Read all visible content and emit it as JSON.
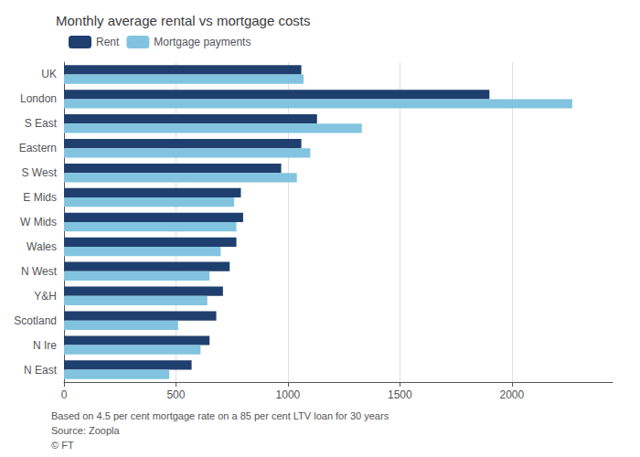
{
  "chart_data": {
    "type": "bar",
    "orientation": "horizontal",
    "title": "Monthly average rental vs mortgage costs",
    "annotations": [
      "Based on 4.5 per cent mortgage rate on a 85 per cent LTV loan for 30 years",
      "Source: Zoopla",
      "© FT"
    ],
    "categories": [
      "UK",
      "London",
      "S East",
      "Eastern",
      "S West",
      "E Mids",
      "W Mids",
      "Wales",
      "N West",
      "Y&H",
      "Scotland",
      "N Ire",
      "N East"
    ],
    "series": [
      {
        "name": "Rent",
        "color": "#1f3f6e",
        "values": [
          1060,
          1900,
          1130,
          1060,
          970,
          790,
          800,
          770,
          740,
          710,
          680,
          650,
          570
        ]
      },
      {
        "name": "Mortgage payments",
        "color": "#82c4e0",
        "values": [
          1070,
          2270,
          1330,
          1100,
          1040,
          760,
          770,
          700,
          650,
          640,
          510,
          610,
          470
        ]
      }
    ],
    "xlim": [
      0,
      2450
    ],
    "xticks": [
      0,
      500,
      1000,
      1500,
      2000
    ],
    "grid": true,
    "legend": "upper left"
  }
}
